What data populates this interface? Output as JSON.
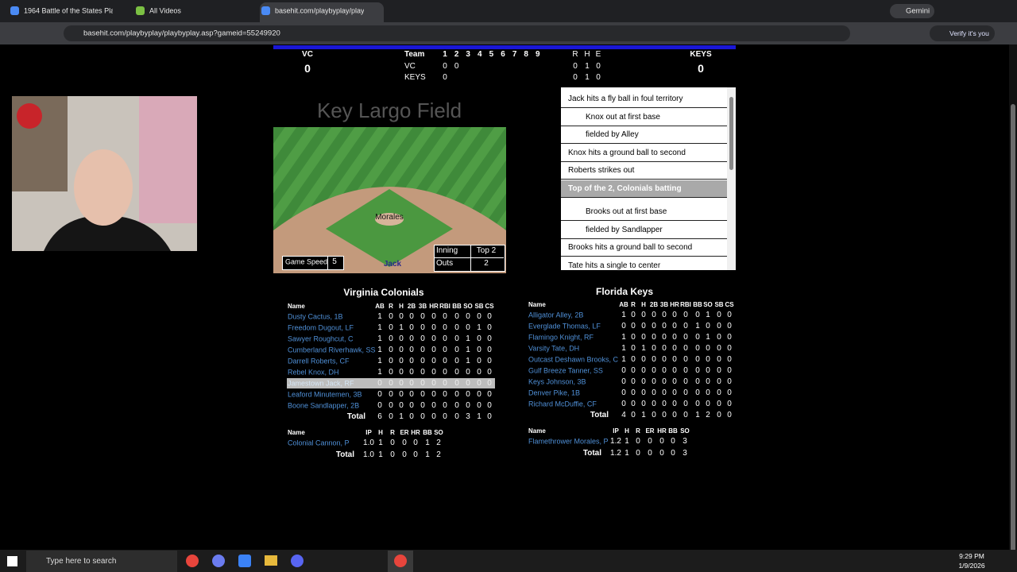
{
  "browser": {
    "tabs": [
      {
        "title": "1964 Battle of the States Playo"
      },
      {
        "title": "All Videos"
      },
      {
        "title": "basehit.com/playbyplay/playby"
      }
    ],
    "address": "basehit.com/playbyplay/playbyplay.asp?gameid=55249920",
    "gemini": "Gemini",
    "profile": "Verify it's you"
  },
  "scoreboard": {
    "away_team": "VC",
    "away_score": 0,
    "home_team": "KEYS",
    "home_score": 0,
    "team_label": "Team",
    "innings": [
      1,
      2,
      3,
      4,
      5,
      6,
      7,
      8,
      9
    ],
    "rhe_labels": [
      "R",
      "H",
      "E"
    ],
    "rows": [
      {
        "team": "VC",
        "innings": [
          0,
          0
        ],
        "rhe": [
          0,
          1,
          0
        ]
      },
      {
        "team": "KEYS",
        "innings": [
          0
        ],
        "rhe": [
          0,
          1,
          0
        ]
      }
    ]
  },
  "field": {
    "title": "Key Largo Field",
    "pitcher": "Morales",
    "batter": "Jack",
    "speed_label": "Game Speed",
    "speed": 5,
    "inning_label": "Inning",
    "inning": "Top 2",
    "outs_label": "Outs",
    "outs": 2
  },
  "play_by_play": [
    {
      "text": "Jack hits a fly ball in foul territory",
      "indent": false
    },
    {
      "text": "Knox out at first base",
      "indent": true
    },
    {
      "text": "fielded by Alley",
      "indent": true
    },
    {
      "text": "Knox hits a ground ball to second",
      "indent": false
    },
    {
      "text": "Roberts strikes out",
      "indent": false
    },
    {
      "text": "Top of the 2, Colonials batting",
      "indent": false,
      "highlight": true
    },
    {
      "text": "Brooks out at first base",
      "indent": true
    },
    {
      "text": "fielded by Sandlapper",
      "indent": true
    },
    {
      "text": "Brooks hits a ground ball to second",
      "indent": false
    },
    {
      "text": "Tate hits a single to center",
      "indent": false
    }
  ],
  "teams": [
    {
      "name": "Virginia Colonials",
      "batting": {
        "columns": [
          "Name",
          "AB",
          "R",
          "H",
          "2B",
          "3B",
          "HR",
          "RBI",
          "BB",
          "SO",
          "SB",
          "CS"
        ],
        "rows": [
          {
            "name": "Dusty Cactus, 1B",
            "stats": [
              1,
              0,
              0,
              0,
              0,
              0,
              0,
              0,
              0,
              0,
              0
            ]
          },
          {
            "name": "Freedom Dugout, LF",
            "stats": [
              1,
              0,
              1,
              0,
              0,
              0,
              0,
              0,
              0,
              1,
              0
            ]
          },
          {
            "name": "Sawyer Roughcut, C",
            "stats": [
              1,
              0,
              0,
              0,
              0,
              0,
              0,
              0,
              1,
              0,
              0
            ]
          },
          {
            "name": "Cumberland Riverhawk, SS",
            "stats": [
              1,
              0,
              0,
              0,
              0,
              0,
              0,
              0,
              1,
              0,
              0
            ]
          },
          {
            "name": "Darrell Roberts, CF",
            "stats": [
              1,
              0,
              0,
              0,
              0,
              0,
              0,
              0,
              1,
              0,
              0
            ]
          },
          {
            "name": "Rebel Knox, DH",
            "stats": [
              1,
              0,
              0,
              0,
              0,
              0,
              0,
              0,
              0,
              0,
              0
            ]
          },
          {
            "name": "Jamestown Jack, RF",
            "stats": [
              0,
              0,
              0,
              0,
              0,
              0,
              0,
              0,
              0,
              0,
              0
            ],
            "highlight": true
          },
          {
            "name": "Leaford Minutemen, 3B",
            "stats": [
              0,
              0,
              0,
              0,
              0,
              0,
              0,
              0,
              0,
              0,
              0
            ]
          },
          {
            "name": "Boone Sandlapper, 2B",
            "stats": [
              0,
              0,
              0,
              0,
              0,
              0,
              0,
              0,
              0,
              0,
              0
            ]
          }
        ],
        "total_label": "Total",
        "totals": [
          6,
          0,
          1,
          0,
          0,
          0,
          0,
          0,
          3,
          1,
          0
        ]
      },
      "pitching": {
        "columns": [
          "Name",
          "IP",
          "H",
          "R",
          "ER",
          "HR",
          "BB",
          "SO"
        ],
        "rows": [
          {
            "name": "Colonial Cannon, P",
            "stats": [
              "1.0",
              1,
              0,
              0,
              0,
              1,
              2
            ]
          }
        ],
        "total_label": "Total",
        "totals": [
          "1.0",
          1,
          0,
          0,
          0,
          1,
          2
        ]
      }
    },
    {
      "name": "Florida Keys",
      "batting": {
        "columns": [
          "Name",
          "AB",
          "R",
          "H",
          "2B",
          "3B",
          "HR",
          "RBI",
          "BB",
          "SO",
          "SB",
          "CS"
        ],
        "rows": [
          {
            "name": "Alligator Alley, 2B",
            "stats": [
              1,
              0,
              0,
              0,
              0,
              0,
              0,
              0,
              1,
              0,
              0
            ]
          },
          {
            "name": "Everglade Thomas, LF",
            "stats": [
              0,
              0,
              0,
              0,
              0,
              0,
              0,
              1,
              0,
              0,
              0
            ]
          },
          {
            "name": "Flamingo Knight, RF",
            "stats": [
              1,
              0,
              0,
              0,
              0,
              0,
              0,
              0,
              1,
              0,
              0
            ]
          },
          {
            "name": "Varsity Tate, DH",
            "stats": [
              1,
              0,
              1,
              0,
              0,
              0,
              0,
              0,
              0,
              0,
              0
            ]
          },
          {
            "name": "Outcast Deshawn Brooks, C",
            "stats": [
              1,
              0,
              0,
              0,
              0,
              0,
              0,
              0,
              0,
              0,
              0
            ]
          },
          {
            "name": "Gulf Breeze Tanner, SS",
            "stats": [
              0,
              0,
              0,
              0,
              0,
              0,
              0,
              0,
              0,
              0,
              0
            ]
          },
          {
            "name": "Keys Johnson, 3B",
            "stats": [
              0,
              0,
              0,
              0,
              0,
              0,
              0,
              0,
              0,
              0,
              0
            ]
          },
          {
            "name": "Denver Pike, 1B",
            "stats": [
              0,
              0,
              0,
              0,
              0,
              0,
              0,
              0,
              0,
              0,
              0
            ]
          },
          {
            "name": "Richard McDuffie, CF",
            "stats": [
              0,
              0,
              0,
              0,
              0,
              0,
              0,
              0,
              0,
              0,
              0
            ]
          }
        ],
        "total_label": "Total",
        "totals": [
          4,
          0,
          1,
          0,
          0,
          0,
          0,
          1,
          2,
          0,
          0
        ]
      },
      "pitching": {
        "columns": [
          "Name",
          "IP",
          "H",
          "R",
          "ER",
          "HR",
          "BB",
          "SO"
        ],
        "rows": [
          {
            "name": "Flamethrower Morales, P",
            "stats": [
              "1.2",
              1,
              0,
              0,
              0,
              0,
              3
            ]
          }
        ],
        "total_label": "Total",
        "totals": [
          "1.2",
          1,
          0,
          0,
          0,
          0,
          3
        ]
      }
    }
  ],
  "taskbar": {
    "search": "Type here to search",
    "time": "9:29 PM",
    "date": "1/9/2026"
  }
}
